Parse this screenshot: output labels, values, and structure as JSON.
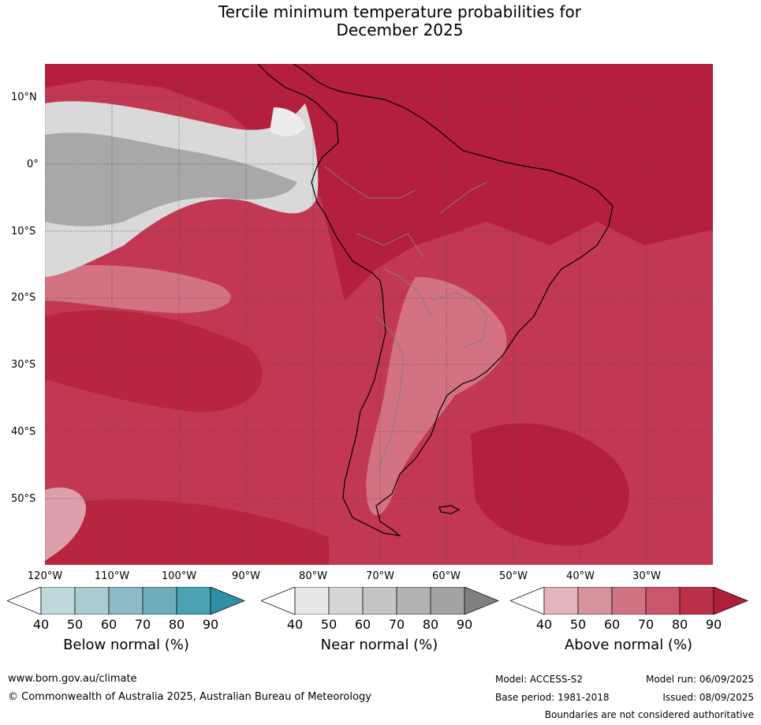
{
  "title_line1": "Tercile minimum temperature probabilities for",
  "title_line2": "December 2025",
  "latitude_labels": [
    "10°N",
    "0°",
    "10°S",
    "20°S",
    "30°S",
    "40°S",
    "50°S"
  ],
  "longitude_labels": [
    "120°W",
    "110°W",
    "100°W",
    "90°W",
    "80°W",
    "70°W",
    "60°W",
    "50°W",
    "40°W",
    "30°W"
  ],
  "map": {
    "extent": {
      "lon": [
        -120,
        -20
      ],
      "lat": [
        -60,
        15
      ]
    },
    "dominant_category": "above normal",
    "colors": {
      "above_dark": "#b61f3e",
      "above_mid": "#c9445d",
      "above_light": "#d4707f",
      "near_light": "#d8d8d8",
      "near_mid": "#a9a9a9",
      "below_light": "#bfd8de"
    }
  },
  "legends": [
    {
      "title": "Below normal (%)",
      "ticks": [
        "40",
        "50",
        "60",
        "70",
        "80",
        "90"
      ],
      "colors": [
        "#ffffff",
        "#bfd8de",
        "#a9cbd2",
        "#8cbac6",
        "#6eaeba",
        "#4aa2b3",
        "#2e8fa6"
      ]
    },
    {
      "title": "Near normal (%)",
      "ticks": [
        "40",
        "50",
        "60",
        "70",
        "80",
        "90"
      ],
      "colors": [
        "#ffffff",
        "#e7e7e7",
        "#d6d6d6",
        "#c5c5c5",
        "#b3b3b3",
        "#a3a3a3",
        "#808080"
      ]
    },
    {
      "title": "Above normal (%)",
      "ticks": [
        "40",
        "50",
        "60",
        "70",
        "80",
        "90"
      ],
      "colors": [
        "#ffffff",
        "#e2b4bc",
        "#d8929e",
        "#d07483",
        "#c9566a",
        "#bb3047",
        "#b01f3a"
      ]
    }
  ],
  "footer": {
    "website": "www.bom.gov.au/climate",
    "copyright": "© Commonwealth of Australia 2025, Australian Bureau of Meteorology",
    "model": "Model: ACCESS-S2",
    "base_period": "Base period: 1981-2018",
    "model_run": "Model run: 06/09/2025",
    "issued": "Issued: 08/09/2025",
    "disclaimer": "Boundaries are not considered authoritative"
  }
}
